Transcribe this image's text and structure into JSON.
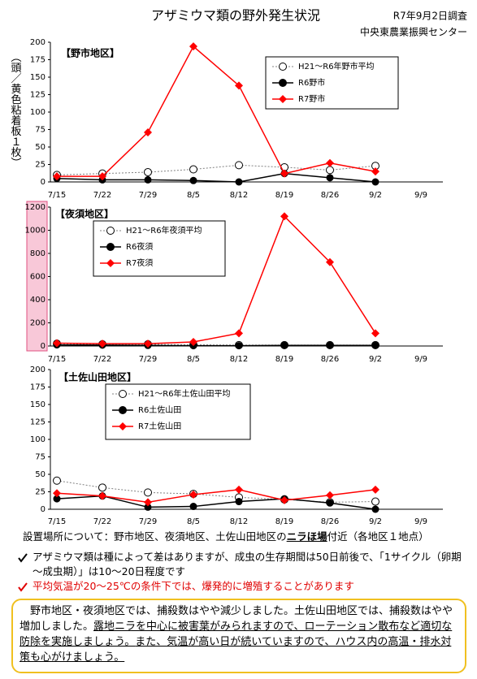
{
  "header": {
    "title": "アザミウマ類の野外発生状況",
    "date": "R7年9月2日調査",
    "org": "中央東農業振興センター",
    "ylabel": "（頭／黄色粘着板１枚）"
  },
  "chart_data": [
    {
      "type": "line",
      "title": "【野市地区】",
      "categories": [
        "7/15",
        "7/22",
        "7/29",
        "8/5",
        "8/12",
        "8/19",
        "8/26",
        "9/2",
        "9/9"
      ],
      "ylim": [
        0,
        200
      ],
      "yticks": [
        0,
        25,
        50,
        75,
        100,
        125,
        150,
        175,
        200
      ],
      "grid": false,
      "series": [
        {
          "name": "H21～R6年野市平均",
          "color": "#808080",
          "values": [
            10,
            12,
            14,
            18,
            24,
            21,
            17,
            23,
            null
          ]
        },
        {
          "name": "R6野市",
          "color": "#000000",
          "values": [
            5,
            3,
            3,
            2,
            0,
            12,
            6,
            0,
            null
          ]
        },
        {
          "name": "R7野市",
          "color": "#ff0000",
          "values": [
            8,
            8,
            71,
            194,
            138,
            12,
            27,
            15,
            null
          ]
        }
      ]
    },
    {
      "type": "line",
      "title": "【夜須地区】",
      "categories": [
        "7/15",
        "7/22",
        "7/29",
        "8/5",
        "8/12",
        "8/19",
        "8/26",
        "9/2",
        "9/9"
      ],
      "ylim": [
        0,
        1200
      ],
      "yticks": [
        0,
        200,
        400,
        600,
        800,
        1000,
        1200
      ],
      "grid": false,
      "series": [
        {
          "name": "H21～R6年夜須平均",
          "color": "#808080",
          "values": [
            20,
            15,
            15,
            10,
            8,
            8,
            8,
            8,
            null
          ]
        },
        {
          "name": "R6夜須",
          "color": "#000000",
          "values": [
            10,
            8,
            5,
            3,
            3,
            5,
            5,
            5,
            null
          ]
        },
        {
          "name": "R7夜須",
          "color": "#ff0000",
          "values": [
            25,
            20,
            20,
            35,
            110,
            1120,
            725,
            110,
            null
          ]
        }
      ]
    },
    {
      "type": "line",
      "title": "【土佐山田地区】",
      "categories": [
        "7/15",
        "7/22",
        "7/29",
        "8/5",
        "8/12",
        "8/19",
        "8/26",
        "9/2",
        "9/9"
      ],
      "ylim": [
        0,
        200
      ],
      "yticks": [
        0,
        25,
        50,
        75,
        100,
        125,
        150,
        175,
        200
      ],
      "grid": false,
      "series": [
        {
          "name": "H21～R6年土佐山田平均",
          "color": "#808080",
          "values": [
            41,
            31,
            24,
            22,
            17,
            14,
            10,
            11,
            null
          ]
        },
        {
          "name": "R6土佐山田",
          "color": "#000000",
          "values": [
            15,
            19,
            3,
            4,
            11,
            15,
            9,
            0,
            null
          ]
        },
        {
          "name": "R7土佐山田",
          "color": "#ff0000",
          "values": [
            23,
            19,
            10,
            21,
            28,
            13,
            20,
            28,
            null
          ]
        }
      ]
    }
  ],
  "notes": {
    "location": [
      "設置場所について：野市地区、夜須地区、土佐山田地区の",
      "ニラほ場",
      "付近（各地区１地点）"
    ],
    "bullets": [
      "アザミウマ類は種によって差はありますが、成虫の生存期間は50日前後で、「1サイクル（卵期～成虫期）」は10～20日程度です",
      "平均気温が20～25℃の条件下では、爆発的に増殖することがあります"
    ]
  },
  "box": {
    "segments": [
      "野市地区・夜須地区では、捕殺数はやや減少しました。土佐山田地区では、捕殺数はやや増加しました。",
      "露地ニラを中心に被害葉がみられますので、ローテーション散布など適切な防除を実施しましょう。",
      "また、気温が高い日が続いていますので、ハウス内の高温・排水対策も心がけましょう。"
    ]
  }
}
